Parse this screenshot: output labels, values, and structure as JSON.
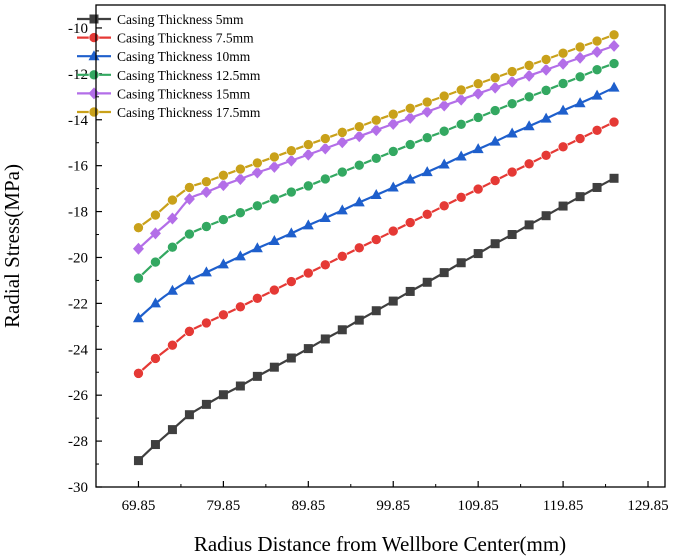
{
  "chart_data": {
    "type": "line",
    "title": "",
    "xlabel": "Radius  Distance from Wellbore Center(mm)",
    "ylabel": "Radial Stress(MPa)",
    "xlim": [
      64.85,
      131.85
    ],
    "ylim": [
      -30,
      -9
    ],
    "xticks": [
      69.85,
      79.85,
      89.85,
      99.85,
      109.85,
      119.85,
      129.85
    ],
    "xtick_labels": [
      "69.85",
      "79.85",
      "89.85",
      "99.85",
      "109.85",
      "119.85",
      "129.85"
    ],
    "yticks": [
      -30,
      -28,
      -26,
      -24,
      -22,
      -20,
      -18,
      -16,
      -14,
      -12,
      -10
    ],
    "ytick_labels": [
      "-30",
      "-28",
      "-26",
      "-24",
      "-22",
      "-20",
      "-18",
      "-16",
      "-14",
      "-12",
      "-10"
    ],
    "grid": false,
    "legend_position": "top-left",
    "x": [
      69.85,
      71.85,
      73.85,
      75.85,
      77.85,
      79.85,
      81.85,
      83.85,
      85.85,
      87.85,
      89.85,
      91.85,
      93.85,
      95.85,
      97.85,
      99.85,
      101.85,
      103.85,
      105.85,
      107.85,
      109.85,
      111.85,
      113.85,
      115.85,
      117.85,
      119.85,
      121.85,
      123.85,
      125.85
    ],
    "series": [
      {
        "name": "Casing Thickness 5mm",
        "color": "#3f3f3f",
        "marker": "square",
        "values": [
          -28.85,
          -28.15,
          -27.5,
          -26.85,
          -26.4,
          -25.98,
          -25.6,
          -25.18,
          -24.78,
          -24.38,
          -23.97,
          -23.55,
          -23.15,
          -22.73,
          -22.32,
          -21.9,
          -21.48,
          -21.08,
          -20.66,
          -20.23,
          -19.83,
          -19.4,
          -19.0,
          -18.58,
          -18.18,
          -17.76,
          -17.35,
          -16.95,
          -16.55
        ]
      },
      {
        "name": "Casing Thickness 7.5mm",
        "color": "#e53935",
        "marker": "circle",
        "values": [
          -25.05,
          -24.4,
          -23.82,
          -23.22,
          -22.85,
          -22.5,
          -22.15,
          -21.78,
          -21.42,
          -21.05,
          -20.68,
          -20.32,
          -19.95,
          -19.58,
          -19.22,
          -18.85,
          -18.48,
          -18.12,
          -17.75,
          -17.38,
          -17.02,
          -16.65,
          -16.28,
          -15.92,
          -15.55,
          -15.18,
          -14.82,
          -14.46,
          -14.1
        ]
      },
      {
        "name": "Casing Thickness 10mm",
        "color": "#1e5fcc",
        "marker": "triangle",
        "values": [
          -22.65,
          -22.0,
          -21.45,
          -21.0,
          -20.65,
          -20.3,
          -19.95,
          -19.6,
          -19.28,
          -18.95,
          -18.6,
          -18.28,
          -17.95,
          -17.6,
          -17.28,
          -16.95,
          -16.6,
          -16.28,
          -15.95,
          -15.6,
          -15.28,
          -14.95,
          -14.6,
          -14.28,
          -13.95,
          -13.6,
          -13.28,
          -12.95,
          -12.6
        ]
      },
      {
        "name": "Casing Thickness 12.5mm",
        "color": "#33a861",
        "marker": "circle",
        "values": [
          -20.9,
          -20.2,
          -19.55,
          -18.98,
          -18.65,
          -18.35,
          -18.05,
          -17.75,
          -17.45,
          -17.15,
          -16.88,
          -16.58,
          -16.28,
          -15.98,
          -15.68,
          -15.38,
          -15.08,
          -14.78,
          -14.5,
          -14.2,
          -13.9,
          -13.6,
          -13.3,
          -13.0,
          -12.72,
          -12.42,
          -12.13,
          -11.82,
          -11.55
        ]
      },
      {
        "name": "Casing Thickness 15mm",
        "color": "#b36ee8",
        "marker": "diamond",
        "values": [
          -19.62,
          -18.95,
          -18.3,
          -17.45,
          -17.15,
          -16.85,
          -16.58,
          -16.3,
          -16.05,
          -15.78,
          -15.52,
          -15.25,
          -14.98,
          -14.72,
          -14.45,
          -14.18,
          -13.92,
          -13.65,
          -13.38,
          -13.12,
          -12.86,
          -12.6,
          -12.34,
          -12.08,
          -11.82,
          -11.56,
          -11.3,
          -11.04,
          -10.78
        ]
      },
      {
        "name": "Casing Thickness 17.5mm",
        "color": "#c9a11a",
        "marker": "circle",
        "values": [
          -18.7,
          -18.15,
          -17.5,
          -16.95,
          -16.7,
          -16.42,
          -16.15,
          -15.88,
          -15.62,
          -15.35,
          -15.08,
          -14.82,
          -14.55,
          -14.3,
          -14.02,
          -13.76,
          -13.5,
          -13.23,
          -12.97,
          -12.7,
          -12.43,
          -12.17,
          -11.9,
          -11.63,
          -11.37,
          -11.1,
          -10.83,
          -10.57,
          -10.3
        ]
      }
    ]
  }
}
